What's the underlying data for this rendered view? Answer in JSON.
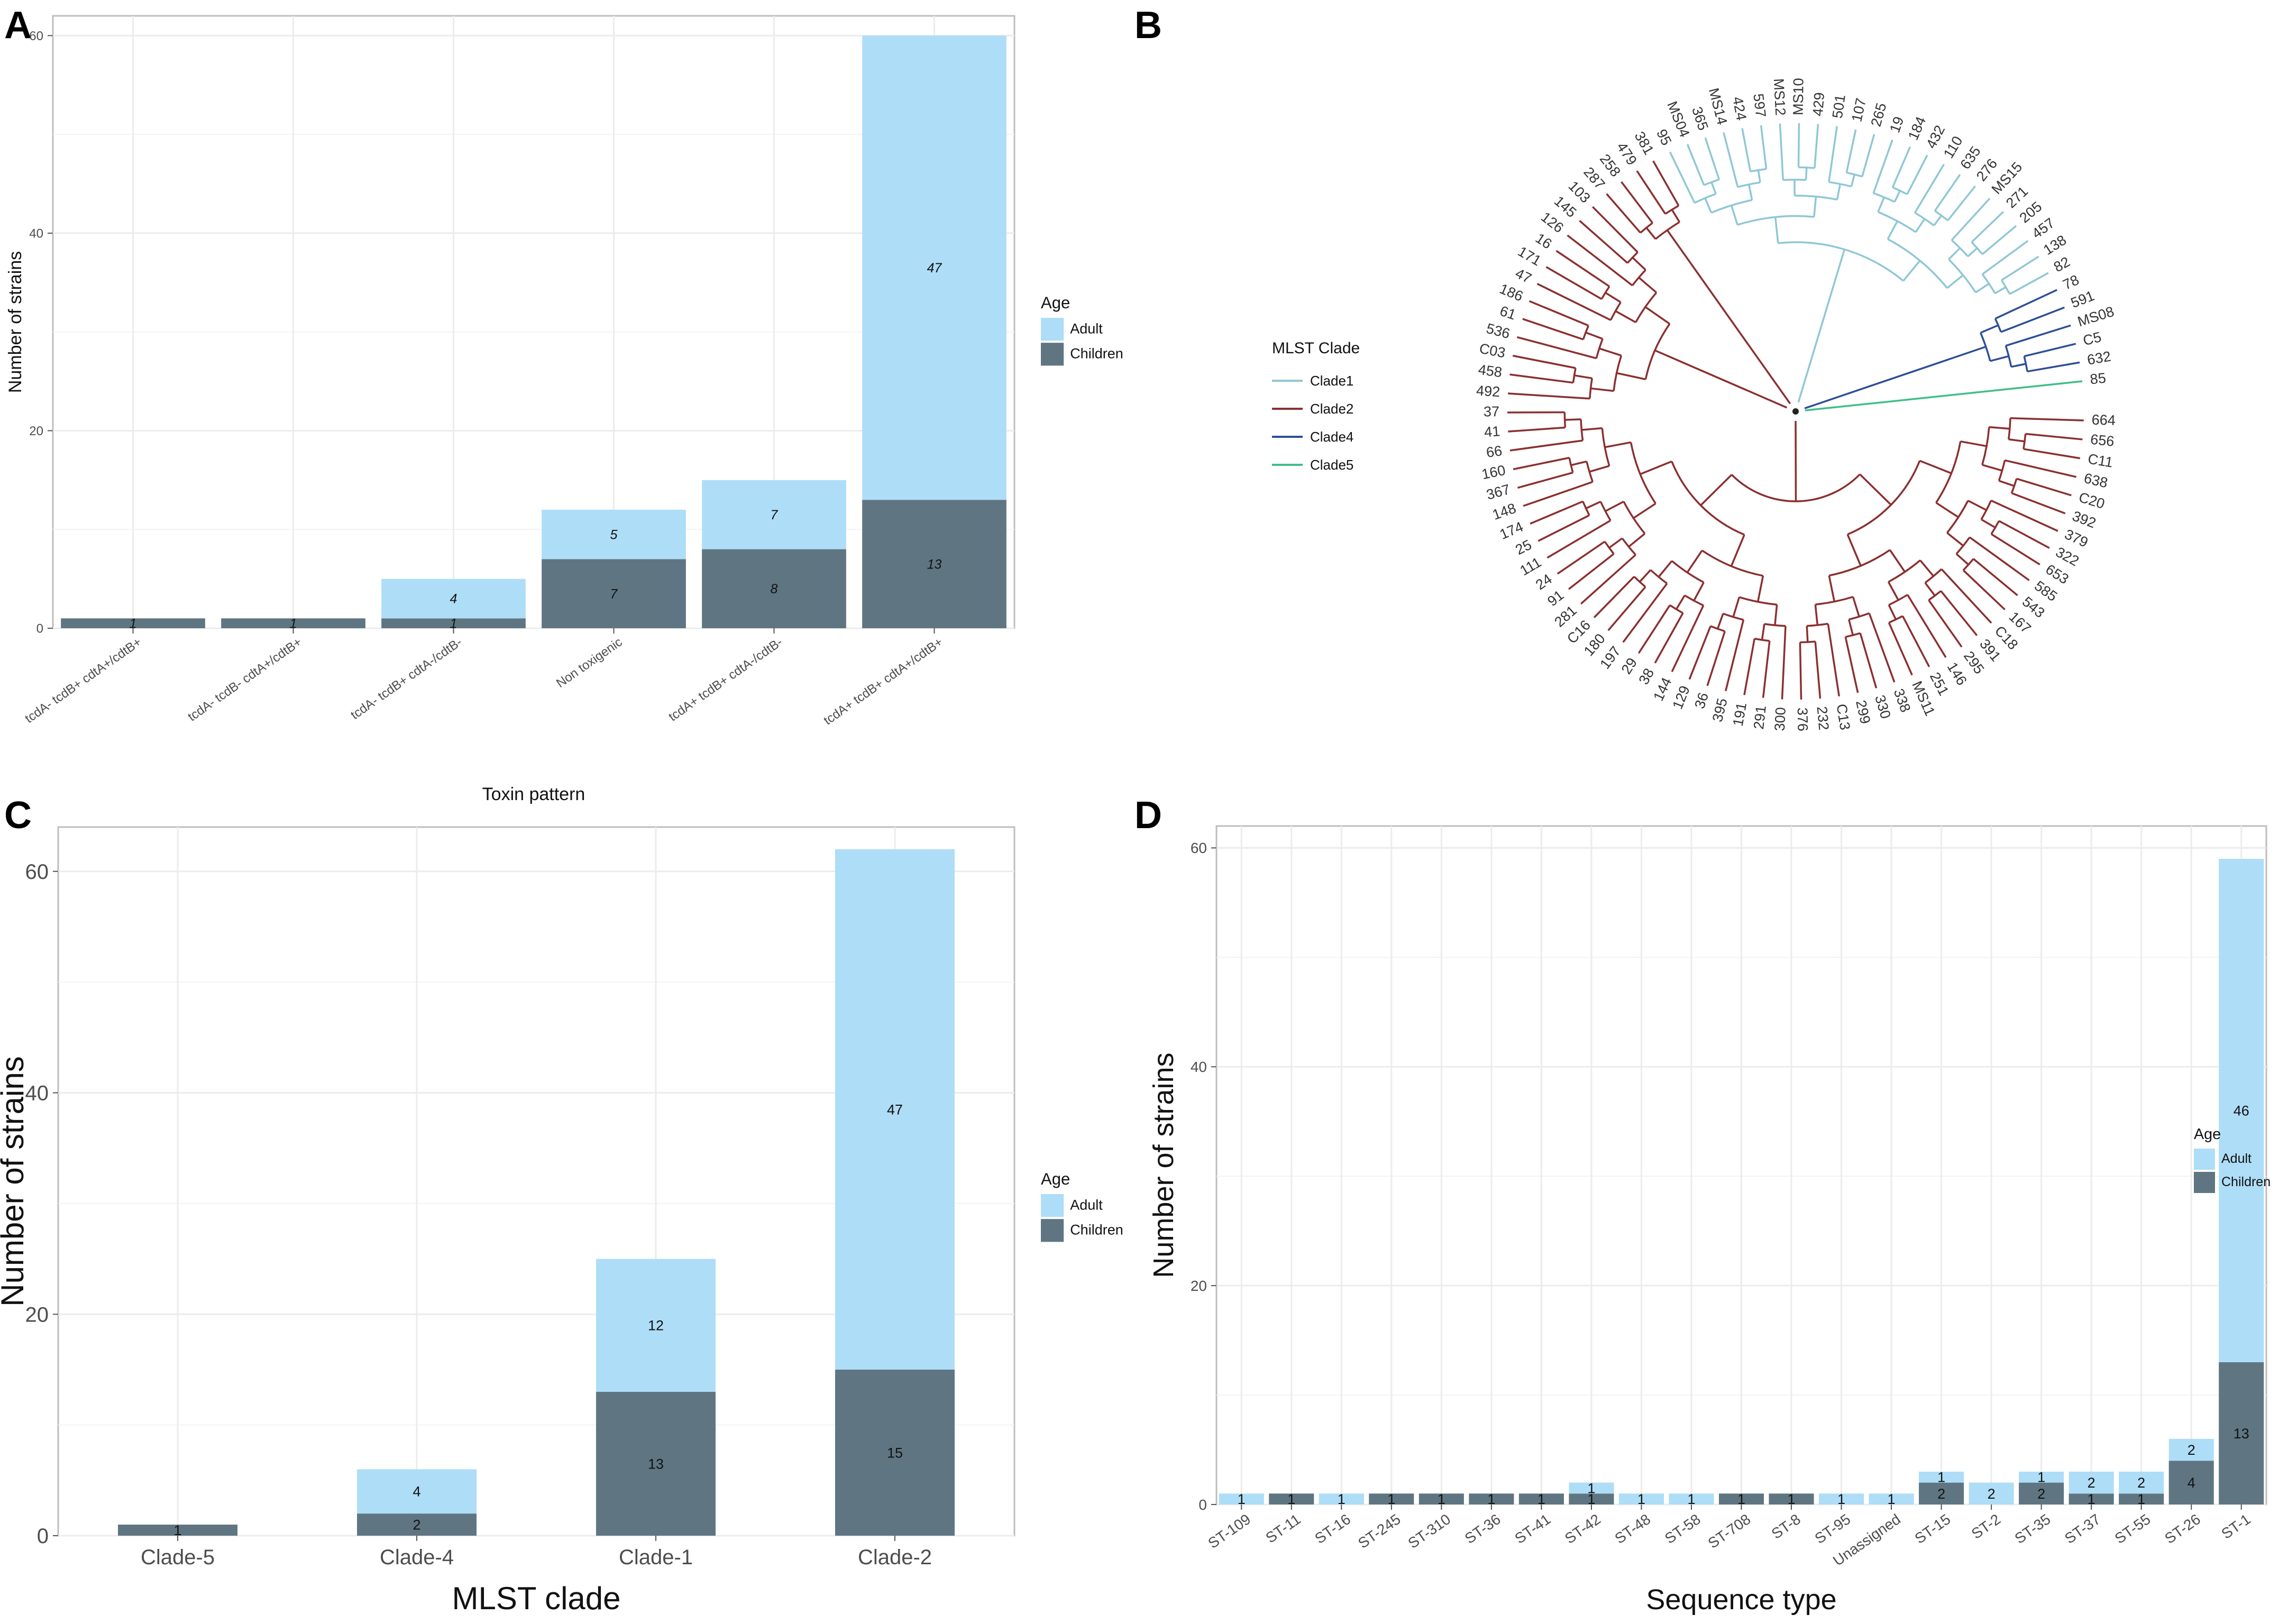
{
  "panel_labels": {
    "A": "A",
    "B": "B",
    "C": "C",
    "D": "D"
  },
  "colors": {
    "adult": "#aeddf7",
    "children": "#5f7682",
    "clade1": "#8fc7d6",
    "clade2": "#8b2f2f",
    "clade4": "#2e4f96",
    "clade5": "#3fbf89",
    "panel_bg": "#ffffff",
    "grid": "#ececec",
    "border": "#bdbdbd"
  },
  "chart_data": [
    {
      "id": "A",
      "type": "bar",
      "stacked": true,
      "xlabel": "Toxin pattern",
      "ylabel": "Number of strains",
      "ylim": [
        0,
        62
      ],
      "yticks": [
        0,
        20,
        40,
        60
      ],
      "categories": [
        "tcdA- tcdB+ cdtA+/cdtB+",
        "tcdA- tcdB- cdtA+/cdtB+",
        "tcdA- tcdB+ cdtA-/cdtB-",
        "Non toxigenic",
        "tcdA+ tcdB+ cdtA-/cdtB-",
        "tcdA+ tcdB+ cdtA+/cdtB+"
      ],
      "series": [
        {
          "name": "Children",
          "values": [
            1,
            1,
            1,
            7,
            8,
            13
          ]
        },
        {
          "name": "Adult",
          "values": [
            0,
            0,
            4,
            5,
            7,
            47
          ]
        }
      ],
      "legend_title": "Age",
      "legend_position": "right"
    },
    {
      "id": "B",
      "type": "tree",
      "legend_title": "MLST Clade",
      "legend_items": [
        "Clade1",
        "Clade2",
        "Clade4",
        "Clade5"
      ],
      "leaves": [
        "85",
        "632",
        "C5",
        "MS08",
        "591",
        "78",
        "82",
        "138",
        "457",
        "205",
        "271",
        "MS15",
        "276",
        "635",
        "110",
        "432",
        "184",
        "19",
        "265",
        "107",
        "501",
        "429",
        "MS10",
        "MS12",
        "597",
        "424",
        "MS14",
        "365",
        "MS04",
        "95",
        "381",
        "479",
        "258",
        "287",
        "103",
        "145",
        "126",
        "16",
        "171",
        "47",
        "186",
        "61",
        "536",
        "C03",
        "458",
        "492",
        "37",
        "41",
        "66",
        "160",
        "367",
        "148",
        "174",
        "25",
        "111",
        "24",
        "91",
        "281",
        "C16",
        "180",
        "197",
        "29",
        "38",
        "144",
        "129",
        "36",
        "395",
        "191",
        "291",
        "300",
        "376",
        "232",
        "C13",
        "299",
        "330",
        "338",
        "MS11",
        "251",
        "146",
        "295",
        "391",
        "C18",
        "167",
        "543",
        "585",
        "653",
        "322",
        "379",
        "392",
        "C20",
        "638",
        "C11",
        "656",
        "664"
      ]
    },
    {
      "id": "C",
      "type": "bar",
      "stacked": true,
      "xlabel": "MLST clade",
      "ylabel": "Number of strains",
      "ylim": [
        0,
        64
      ],
      "yticks": [
        0,
        20,
        40,
        60
      ],
      "categories": [
        "Clade-5",
        "Clade-4",
        "Clade-1",
        "Clade-2"
      ],
      "series": [
        {
          "name": "Children",
          "values": [
            1,
            2,
            13,
            15
          ]
        },
        {
          "name": "Adult",
          "values": [
            0,
            4,
            12,
            47
          ]
        }
      ],
      "legend_title": "Age",
      "legend_position": "right"
    },
    {
      "id": "D",
      "type": "bar",
      "stacked": true,
      "xlabel": "Sequence type",
      "ylabel": "Number of strains",
      "ylim": [
        0,
        62
      ],
      "yticks": [
        0,
        20,
        40,
        60
      ],
      "categories": [
        "ST-109",
        "ST-11",
        "ST-16",
        "ST-245",
        "ST-310",
        "ST-36",
        "ST-41",
        "ST-42",
        "ST-48",
        "ST-58",
        "ST-708",
        "ST-8",
        "ST-95",
        "Unassigned",
        "ST-15",
        "ST-2",
        "ST-35",
        "ST-37",
        "ST-55",
        "ST-26",
        "ST-1"
      ],
      "series": [
        {
          "name": "Children",
          "values": [
            0,
            1,
            0,
            1,
            1,
            1,
            1,
            1,
            0,
            0,
            1,
            1,
            0,
            0,
            2,
            0,
            2,
            1,
            1,
            4,
            13
          ]
        },
        {
          "name": "Adult",
          "values": [
            1,
            0,
            1,
            0,
            0,
            0,
            0,
            1,
            1,
            1,
            0,
            0,
            1,
            1,
            1,
            2,
            1,
            2,
            2,
            2,
            46
          ]
        }
      ],
      "legend_title": "Age",
      "legend_position": "right"
    }
  ]
}
